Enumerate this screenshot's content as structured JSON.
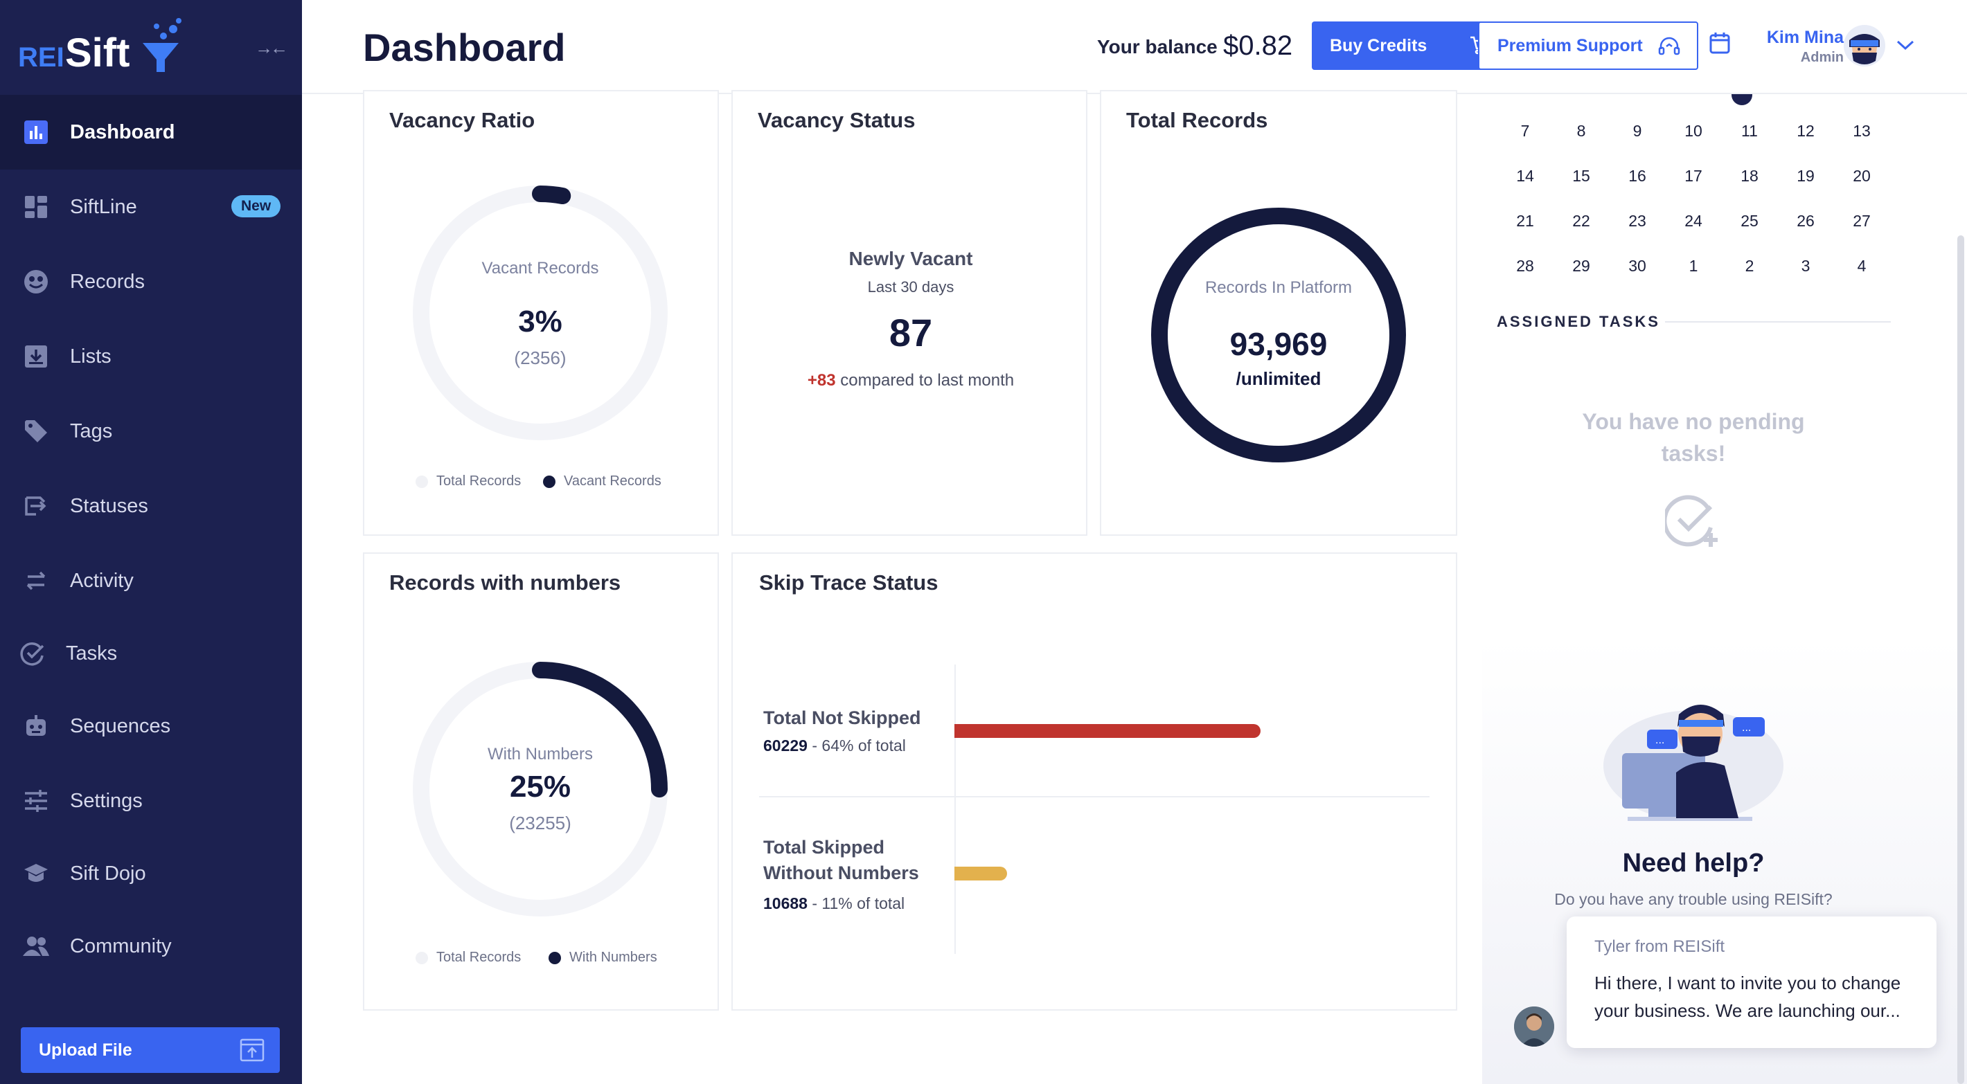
{
  "brand": {
    "logo_rei": "REI",
    "logo_sift": "Sift"
  },
  "sidebar": {
    "items": [
      {
        "label": "Dashboard",
        "icon": "dashboard-icon"
      },
      {
        "label": "SiftLine",
        "icon": "siftline-icon",
        "badge": "New"
      },
      {
        "label": "Records",
        "icon": "records-icon"
      },
      {
        "label": "Lists",
        "icon": "lists-icon"
      },
      {
        "label": "Tags",
        "icon": "tag-icon"
      },
      {
        "label": "Statuses",
        "icon": "statuses-icon"
      },
      {
        "label": "Activity",
        "icon": "activity-icon"
      },
      {
        "label": "Tasks",
        "icon": "tasks-icon"
      },
      {
        "label": "Sequences",
        "icon": "robot-icon"
      },
      {
        "label": "Settings",
        "icon": "sliders-icon"
      },
      {
        "label": "Sift Dojo",
        "icon": "graduation-cap-icon"
      },
      {
        "label": "Community",
        "icon": "people-icon"
      }
    ],
    "upload_label": "Upload File"
  },
  "header": {
    "title": "Dashboard",
    "balance_label": "Your balance",
    "balance_value": "$0.82",
    "buy_label": "Buy Credits",
    "support_label": "Premium Support",
    "user_name": "Kim Mina",
    "user_role": "Admin"
  },
  "vacancy_ratio": {
    "title": "Vacancy Ratio",
    "center_label": "Vacant Records",
    "percent": "3%",
    "count": "(2356)",
    "fraction": 0.03,
    "legend": [
      "Total Records",
      "Vacant Records"
    ]
  },
  "vacancy_status": {
    "title": "Vacancy Status",
    "label": "Newly Vacant",
    "period": "Last 30 days",
    "value": "87",
    "delta": "+83",
    "delta_text": "compared to last month"
  },
  "total_records": {
    "title": "Total Records",
    "center_label": "Records In Platform",
    "value": "93,969",
    "limit": "/unlimited"
  },
  "records_numbers": {
    "title": "Records with numbers",
    "center_label": "With Numbers",
    "percent": "25%",
    "count": "(23255)",
    "fraction": 0.25,
    "legend": [
      "Total Records",
      "With Numbers"
    ]
  },
  "skip_trace": {
    "title": "Skip Trace Status",
    "rows": [
      {
        "label": "Total Not Skipped",
        "value": "60229",
        "pct_text": " - 64% of total",
        "fraction": 0.64,
        "color": "#c0342e"
      },
      {
        "label": "Total Skipped Without Numbers",
        "value": "10688",
        "pct_text": " - 11% of total",
        "fraction": 0.11,
        "color": "#e3b14d"
      }
    ]
  },
  "calendar": {
    "weeks": [
      [
        "7",
        "8",
        "9",
        "10",
        "11",
        "12",
        "13"
      ],
      [
        "14",
        "15",
        "16",
        "17",
        "18",
        "19",
        "20"
      ],
      [
        "21",
        "22",
        "23",
        "24",
        "25",
        "26",
        "27"
      ],
      [
        "28",
        "29",
        "30",
        "1",
        "2",
        "3",
        "4"
      ]
    ]
  },
  "tasks": {
    "heading": "ASSIGNED TASKS",
    "empty_text": "You have no pending tasks!"
  },
  "help": {
    "title": "Need help?",
    "subtitle": "Do you have any trouble using REISift?"
  },
  "chat": {
    "from": "Tyler from REISift",
    "message": "Hi there, I want to invite you to change your business.  We are launching our..."
  },
  "colors": {
    "sidebar_bg": "#1c2150",
    "accent": "#3964f0",
    "donut_dark": "#141a3d",
    "donut_track": "#f3f4f8",
    "delta_red": "#c0342e"
  }
}
